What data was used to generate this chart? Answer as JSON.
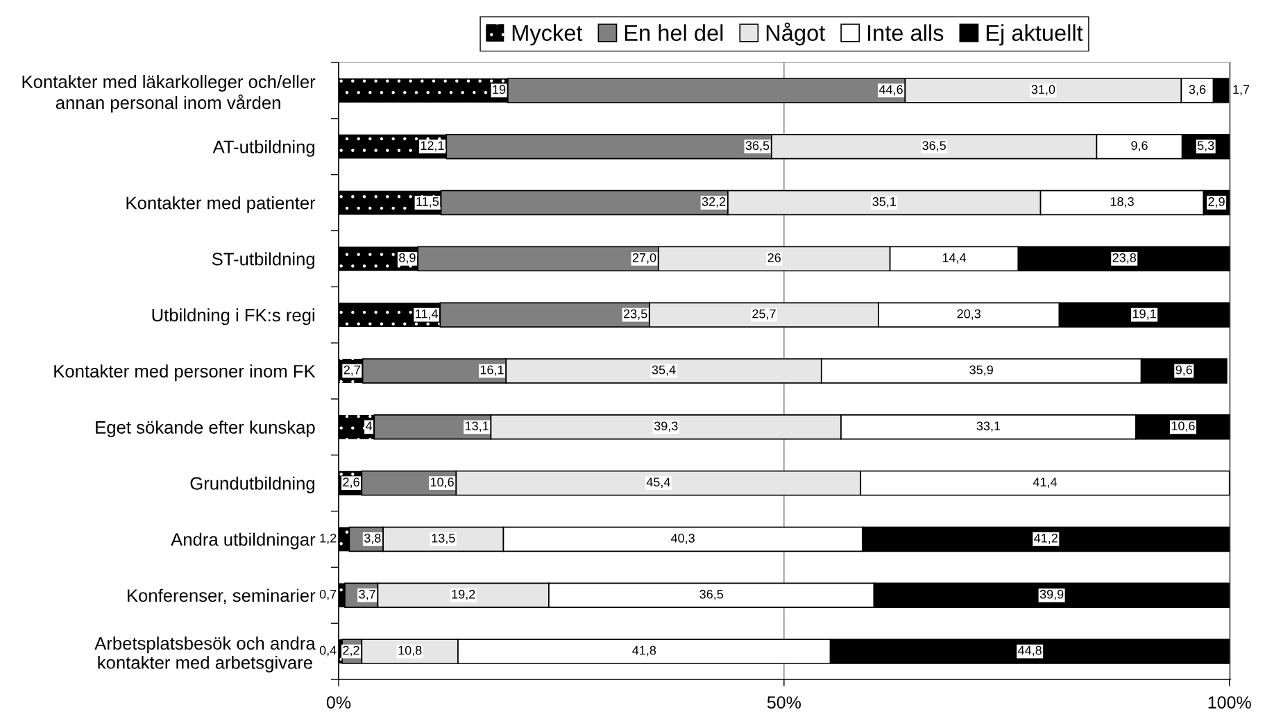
{
  "chart_data": {
    "type": "bar",
    "orientation": "horizontal",
    "stacked": true,
    "categories": [
      "Kontakter med läkarkolleger och/eller\nannan personal inom vården",
      "AT-utbildning",
      "Kontakter med patienter",
      "ST-utbildning",
      "Utbildning i FK:s regi",
      "Kontakter med personer inom FK",
      "Eget sökande efter kunskap",
      "Grundutbildning",
      "Andra utbildningar",
      "Konferenser, seminarier",
      "Arbetsplatsbesök och andra\nkontakter med arbetsgivare"
    ],
    "series": [
      {
        "name": "Mycket",
        "color": "#000000",
        "values": [
          19,
          12.1,
          11.5,
          8.9,
          11.4,
          2.7,
          4,
          2.6,
          1.2,
          0.7,
          0.4
        ],
        "value_labels": [
          "19",
          "12,1",
          "11,5",
          "8,9",
          "11,4",
          "2,7",
          "4",
          "2,6",
          "1,2",
          "0,7",
          "0,4"
        ]
      },
      {
        "name": "En hel del",
        "color": "#808080",
        "values": [
          44.6,
          36.5,
          32.2,
          27.0,
          23.5,
          16.1,
          13.1,
          10.6,
          3.8,
          3.7,
          2.2
        ],
        "value_labels": [
          "44,6",
          "36,5",
          "32,2",
          "27,0",
          "23,5",
          "16,1",
          "13,1",
          "10,6",
          "3,8",
          "3,7",
          "2,2"
        ]
      },
      {
        "name": "Något",
        "color": "#e6e6e6",
        "values": [
          31.0,
          36.5,
          35.1,
          26,
          25.7,
          35.4,
          39.3,
          45.4,
          13.5,
          19.2,
          10.8
        ],
        "value_labels": [
          "31,0",
          "36,5",
          "35,1",
          "26",
          "25,7",
          "35,4",
          "39,3",
          "45,4",
          "13,5",
          "19,2",
          "10,8"
        ]
      },
      {
        "name": "Inte alls",
        "color": "#ffffff",
        "values": [
          3.6,
          9.6,
          18.3,
          14.4,
          20.3,
          35.9,
          33.1,
          41.4,
          40.3,
          36.5,
          41.8
        ],
        "value_labels": [
          "3,6",
          "9,6",
          "18,3",
          "14,4",
          "20,3",
          "35,9",
          "33,1",
          "41,4",
          "40,3",
          "36,5",
          "41,8"
        ]
      },
      {
        "name": "Ej aktuellt",
        "color": "#000000",
        "values": [
          1.7,
          5.3,
          2.9,
          23.8,
          19.1,
          9.6,
          10.6,
          null,
          41.2,
          39.9,
          44.8
        ],
        "value_labels": [
          "1,7",
          "5,3",
          "2,9",
          "23,8",
          "19,1",
          "9,6",
          "10,6",
          null,
          "41,2",
          "39,9",
          "44,8"
        ]
      }
    ],
    "xlim": [
      0,
      100.1
    ],
    "xticks": [
      {
        "value": 0,
        "label": "0%"
      },
      {
        "value": 50,
        "label": "50%"
      },
      {
        "value": 100,
        "label": "100%"
      }
    ],
    "grid": "x",
    "legend": "top"
  }
}
